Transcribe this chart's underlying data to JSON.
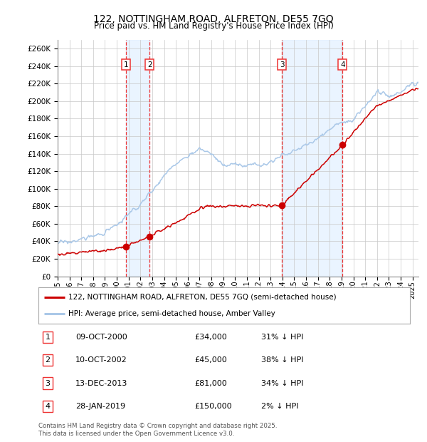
{
  "title": "122, NOTTINGHAM ROAD, ALFRETON, DE55 7GQ",
  "subtitle": "Price paid vs. HM Land Registry's House Price Index (HPI)",
  "ylim": [
    0,
    270000
  ],
  "yticks": [
    0,
    20000,
    40000,
    60000,
    80000,
    100000,
    120000,
    140000,
    160000,
    180000,
    200000,
    220000,
    240000,
    260000
  ],
  "background_color": "#ffffff",
  "plot_bg_color": "#ffffff",
  "grid_color": "#c8c8c8",
  "hpi_color": "#aac8e8",
  "price_color": "#cc0000",
  "vline_color": "#ee3333",
  "vshade_color": "#ddeeff",
  "sales": [
    {
      "label": "1",
      "date_x": 2000.78,
      "price": 34000,
      "date_str": "09-OCT-2000",
      "pct": "31% ↓ HPI"
    },
    {
      "label": "2",
      "date_x": 2002.78,
      "price": 45000,
      "date_str": "10-OCT-2002",
      "pct": "38% ↓ HPI"
    },
    {
      "label": "3",
      "date_x": 2013.96,
      "price": 81000,
      "date_str": "13-DEC-2013",
      "pct": "34% ↓ HPI"
    },
    {
      "label": "4",
      "date_x": 2019.08,
      "price": 150000,
      "date_str": "28-JAN-2019",
      "pct": "2% ↓ HPI"
    }
  ],
  "legend_price_label": "122, NOTTINGHAM ROAD, ALFRETON, DE55 7GQ (semi-detached house)",
  "legend_hpi_label": "HPI: Average price, semi-detached house, Amber Valley",
  "footer": "Contains HM Land Registry data © Crown copyright and database right 2025.\nThis data is licensed under the Open Government Licence v3.0.",
  "xmin": 1995.0,
  "xmax": 2025.5,
  "hpi_anchors_x": [
    1995,
    1996,
    1997,
    1998,
    1999,
    2000,
    2001,
    2002,
    2003,
    2004,
    2005,
    2006,
    2007,
    2008,
    2009,
    2010,
    2011,
    2012,
    2013,
    2014,
    2015,
    2016,
    2017,
    2018,
    2019,
    2020,
    2021,
    2022,
    2023,
    2024,
    2025
  ],
  "hpi_anchors_y": [
    38000,
    39500,
    42000,
    46000,
    50000,
    58000,
    70000,
    82000,
    98000,
    115000,
    128000,
    138000,
    145000,
    140000,
    126000,
    128000,
    127000,
    128000,
    131000,
    138000,
    143000,
    150000,
    158000,
    168000,
    175000,
    178000,
    195000,
    210000,
    205000,
    210000,
    220000
  ],
  "price_anchors_x": [
    1995.0,
    1999.5,
    2000.78,
    2002.78,
    2007.5,
    2013.96,
    2019.08,
    2022.0,
    2025.5
  ],
  "price_anchors_y": [
    25000,
    30000,
    34000,
    45000,
    80000,
    81000,
    150000,
    195000,
    215000
  ],
  "hpi_noise_std": 2500,
  "hpi_noise_smooth": 4,
  "price_noise_std": 1200,
  "price_noise_smooth": 3,
  "num_points": 500,
  "title_fontsize": 10,
  "subtitle_fontsize": 8.5,
  "tick_fontsize": 7.5,
  "label_fontsize": 8
}
